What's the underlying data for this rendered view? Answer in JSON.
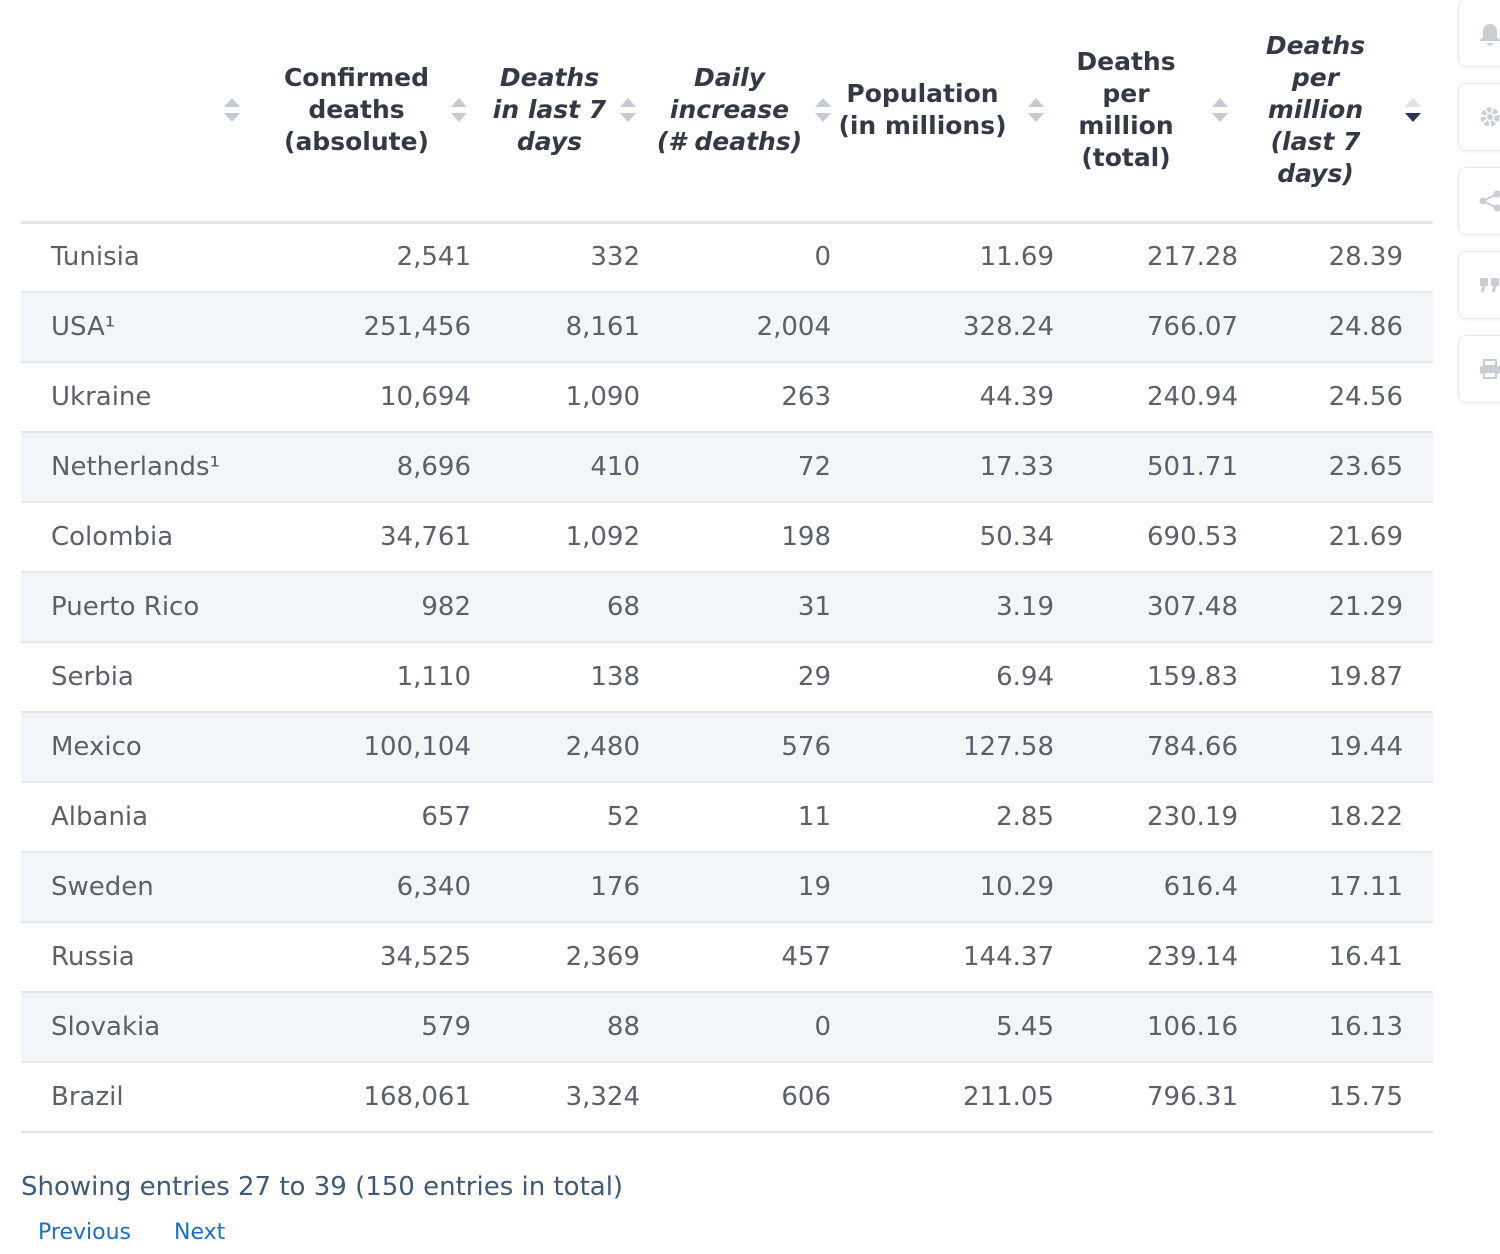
{
  "columns": [
    {
      "label": "",
      "italic": false
    },
    {
      "label": "Confirmed deaths (absolute)",
      "italic": false
    },
    {
      "label": "Deaths in last 7 days",
      "italic": true
    },
    {
      "label": "Daily increase (# deaths)",
      "italic": true
    },
    {
      "label": "Population (in millions)",
      "italic": false
    },
    {
      "label": "Deaths per million (total)",
      "italic": false
    },
    {
      "label": "Deaths per million (last 7 days)",
      "italic": true
    }
  ],
  "header_lines": {
    "c1": [
      "Confirmed",
      "deaths",
      "(absolute)"
    ],
    "c2": [
      "Deaths",
      "in last 7",
      "days"
    ],
    "c3": [
      "Daily",
      "increase",
      "(# deaths)"
    ],
    "c4": [
      "Population",
      "(in millions)"
    ],
    "c5": [
      "Deaths",
      "per",
      "million",
      "(total)"
    ],
    "c6": [
      "Deaths",
      "per",
      "million",
      "(last 7",
      "days)"
    ]
  },
  "sort": {
    "column": "Deaths per million (last 7 days)",
    "direction": "descending"
  },
  "rows": [
    {
      "country": "Tunisia",
      "confirmed": "2,541",
      "last7": "332",
      "daily": "0",
      "population": "11.69",
      "per_million_total": "217.28",
      "per_million_7d": "28.39"
    },
    {
      "country": "USA¹",
      "confirmed": "251,456",
      "last7": "8,161",
      "daily": "2,004",
      "population": "328.24",
      "per_million_total": "766.07",
      "per_million_7d": "24.86"
    },
    {
      "country": "Ukraine",
      "confirmed": "10,694",
      "last7": "1,090",
      "daily": "263",
      "population": "44.39",
      "per_million_total": "240.94",
      "per_million_7d": "24.56"
    },
    {
      "country": "Netherlands¹",
      "confirmed": "8,696",
      "last7": "410",
      "daily": "72",
      "population": "17.33",
      "per_million_total": "501.71",
      "per_million_7d": "23.65"
    },
    {
      "country": "Colombia",
      "confirmed": "34,761",
      "last7": "1,092",
      "daily": "198",
      "population": "50.34",
      "per_million_total": "690.53",
      "per_million_7d": "21.69"
    },
    {
      "country": "Puerto Rico",
      "confirmed": "982",
      "last7": "68",
      "daily": "31",
      "population": "3.19",
      "per_million_total": "307.48",
      "per_million_7d": "21.29"
    },
    {
      "country": "Serbia",
      "confirmed": "1,110",
      "last7": "138",
      "daily": "29",
      "population": "6.94",
      "per_million_total": "159.83",
      "per_million_7d": "19.87"
    },
    {
      "country": "Mexico",
      "confirmed": "100,104",
      "last7": "2,480",
      "daily": "576",
      "population": "127.58",
      "per_million_total": "784.66",
      "per_million_7d": "19.44"
    },
    {
      "country": "Albania",
      "confirmed": "657",
      "last7": "52",
      "daily": "11",
      "population": "2.85",
      "per_million_total": "230.19",
      "per_million_7d": "18.22"
    },
    {
      "country": "Sweden",
      "confirmed": "6,340",
      "last7": "176",
      "daily": "19",
      "population": "10.29",
      "per_million_total": "616.4",
      "per_million_7d": "17.11"
    },
    {
      "country": "Russia",
      "confirmed": "34,525",
      "last7": "2,369",
      "daily": "457",
      "population": "144.37",
      "per_million_total": "239.14",
      "per_million_7d": "16.41"
    },
    {
      "country": "Slovakia",
      "confirmed": "579",
      "last7": "88",
      "daily": "0",
      "population": "5.45",
      "per_million_total": "106.16",
      "per_million_7d": "16.13"
    },
    {
      "country": "Brazil",
      "confirmed": "168,061",
      "last7": "3,324",
      "daily": "606",
      "population": "211.05",
      "per_million_total": "796.31",
      "per_million_7d": "15.75"
    }
  ],
  "footer": {
    "info": "Showing entries 27 to 39 (150 entries in total)",
    "previous": "Previous",
    "next": "Next"
  },
  "toolbar_icons": [
    "bell-icon",
    "gear-icon",
    "share-icon",
    "quote-icon",
    "print-icon"
  ],
  "colors": {
    "stripe": "#f3f6f9",
    "border": "#e3e7ec",
    "link": "#1f6fbf",
    "sort_active": "#253552"
  }
}
